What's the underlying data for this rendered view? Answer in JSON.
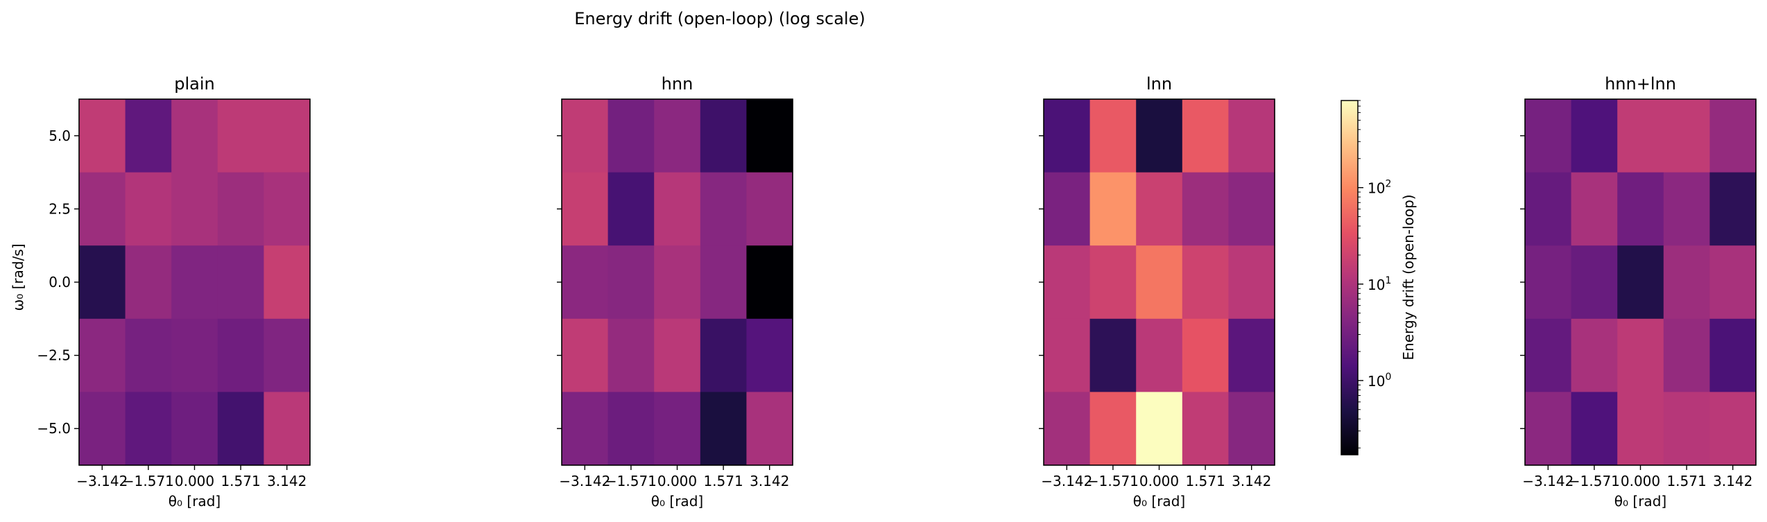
{
  "figure": {
    "suptitle": "Energy drift (open-loop)  (log scale)"
  },
  "chart_data": {
    "type": "heatmap",
    "scale": "log",
    "colormap": "magma",
    "xlabel": "θ₀ [rad]",
    "ylabel": "ω₀ [rad/s]",
    "x_ticks": [
      "−3.142",
      "−1.571",
      "0.000",
      "1.571",
      "3.142"
    ],
    "y_ticks": [
      "5.0",
      "2.5",
      "0.0",
      "−2.5",
      "−5.0"
    ],
    "row_order": "top-to-bottom (ω₀ = 5.0 … −5.0)",
    "colorbar": {
      "label": "Energy drift (open-loop)",
      "vmin": 0.17,
      "vmax": 800,
      "ticks": [
        {
          "value": 1,
          "label": "10",
          "exp": "0"
        },
        {
          "value": 10,
          "label": "10",
          "exp": "1"
        },
        {
          "value": 100,
          "label": "10",
          "exp": "2"
        }
      ]
    },
    "panels": [
      {
        "title": "plain",
        "values": [
          [
            15,
            2.0,
            9,
            14,
            14
          ],
          [
            7,
            11,
            9,
            7,
            9
          ],
          [
            0.6,
            6,
            4,
            4,
            17
          ],
          [
            5,
            3.2,
            3.5,
            2.8,
            4
          ],
          [
            3.5,
            2.0,
            2.7,
            1.1,
            13
          ]
        ]
      },
      {
        "title": "hnn",
        "values": [
          [
            15,
            3.0,
            5,
            1.0,
            0.17
          ],
          [
            17,
            1.2,
            12,
            4.5,
            6
          ],
          [
            5,
            4.5,
            9,
            4.5,
            0.17
          ],
          [
            15,
            6,
            13,
            0.9,
            1.6
          ],
          [
            3.8,
            2.6,
            3.2,
            0.45,
            9
          ]
        ]
      },
      {
        "title": "lnn",
        "values": [
          [
            1.3,
            40,
            0.45,
            40,
            12
          ],
          [
            3.5,
            120,
            18,
            7,
            5
          ],
          [
            13,
            20,
            70,
            20,
            13
          ],
          [
            13,
            0.7,
            13,
            35,
            1.8
          ],
          [
            8,
            40,
            800,
            15,
            4.5
          ]
        ]
      },
      {
        "title": "hnn+lnn",
        "values": [
          [
            3.2,
            1.4,
            15,
            15,
            6
          ],
          [
            2.3,
            9,
            2.8,
            5,
            0.7
          ],
          [
            3.2,
            2.4,
            0.55,
            7,
            9
          ],
          [
            2.2,
            9,
            14,
            6,
            1.3
          ],
          [
            5,
            1.4,
            14,
            12,
            13
          ]
        ]
      }
    ]
  }
}
